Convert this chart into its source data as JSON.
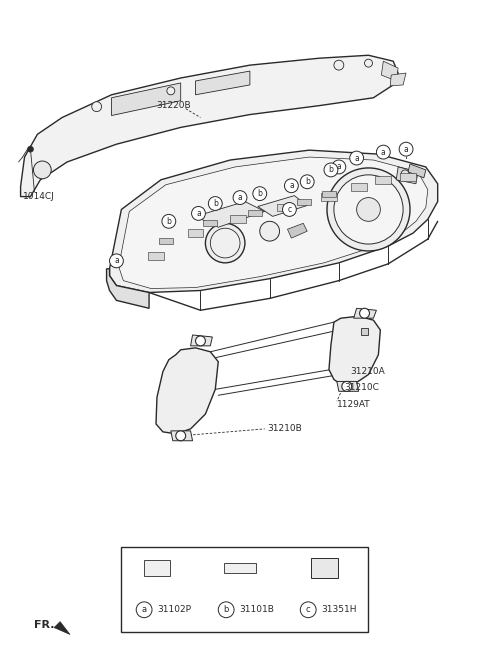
{
  "bg_color": "#ffffff",
  "line_color": "#2a2a2a",
  "figsize": [
    4.8,
    6.67
  ],
  "dpi": 100,
  "legend_items": [
    {
      "label": "a",
      "code": "31102P"
    },
    {
      "label": "b",
      "code": "31101B"
    },
    {
      "label": "c",
      "code": "31351H"
    }
  ]
}
